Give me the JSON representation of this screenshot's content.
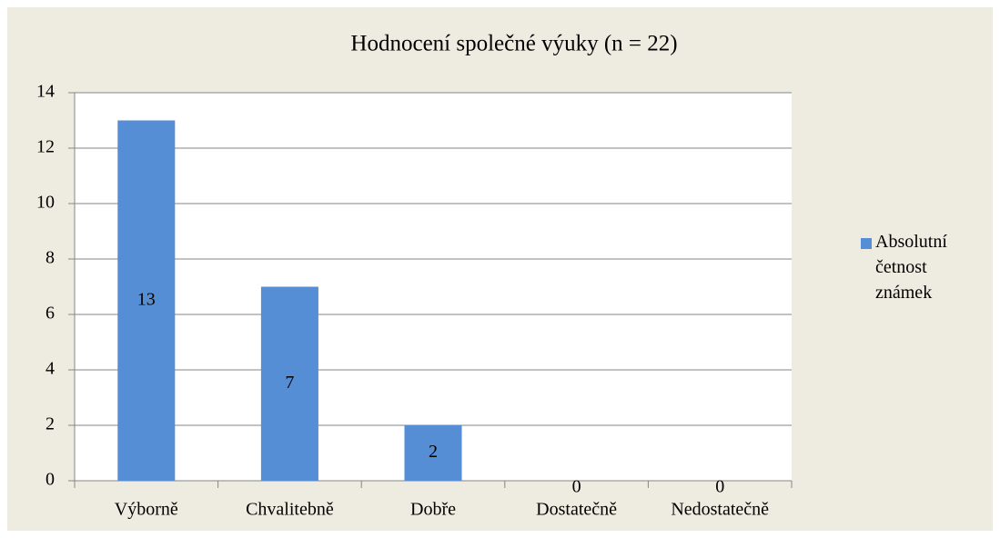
{
  "chart_data": {
    "type": "bar",
    "title": "Hodnocení společné výuky (n = 22)",
    "categories": [
      "Výborně",
      "Chvalitebně",
      "Dobře",
      "Dostatečně",
      "Nedostatečně"
    ],
    "series": [
      {
        "name": "Absolutní četnost známek",
        "color": "#558ed5",
        "values": [
          13,
          7,
          2,
          0,
          0
        ]
      }
    ],
    "ylim": [
      0,
      14
    ],
    "yticks": [
      0,
      2,
      4,
      6,
      8,
      10,
      12,
      14
    ],
    "grid": true,
    "legend": "right"
  }
}
